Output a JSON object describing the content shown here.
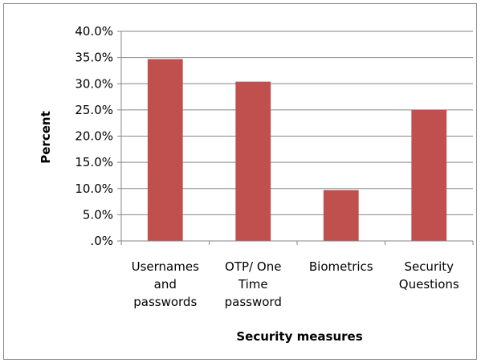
{
  "chart_data": {
    "type": "bar",
    "categories": [
      [
        "Usernames",
        "and",
        "passwords"
      ],
      [
        "OTP/ One",
        "Time",
        "password"
      ],
      [
        "Biometrics"
      ],
      [
        "Security",
        "Questions"
      ]
    ],
    "values": [
      34.7,
      30.4,
      9.7,
      25.0
    ],
    "xlabel": "Security measures",
    "ylabel": "Percent",
    "ylim": [
      0,
      40
    ],
    "yticks": [
      ".0%",
      "5.0%",
      "10.0%",
      "15.0%",
      "20.0%",
      "25.0%",
      "30.0%",
      "35.0%",
      "40.0%"
    ],
    "grid": true,
    "legend": "none",
    "bar_color": "#c0504d",
    "gridline_color": "#868686",
    "axis_color": "#868686"
  }
}
